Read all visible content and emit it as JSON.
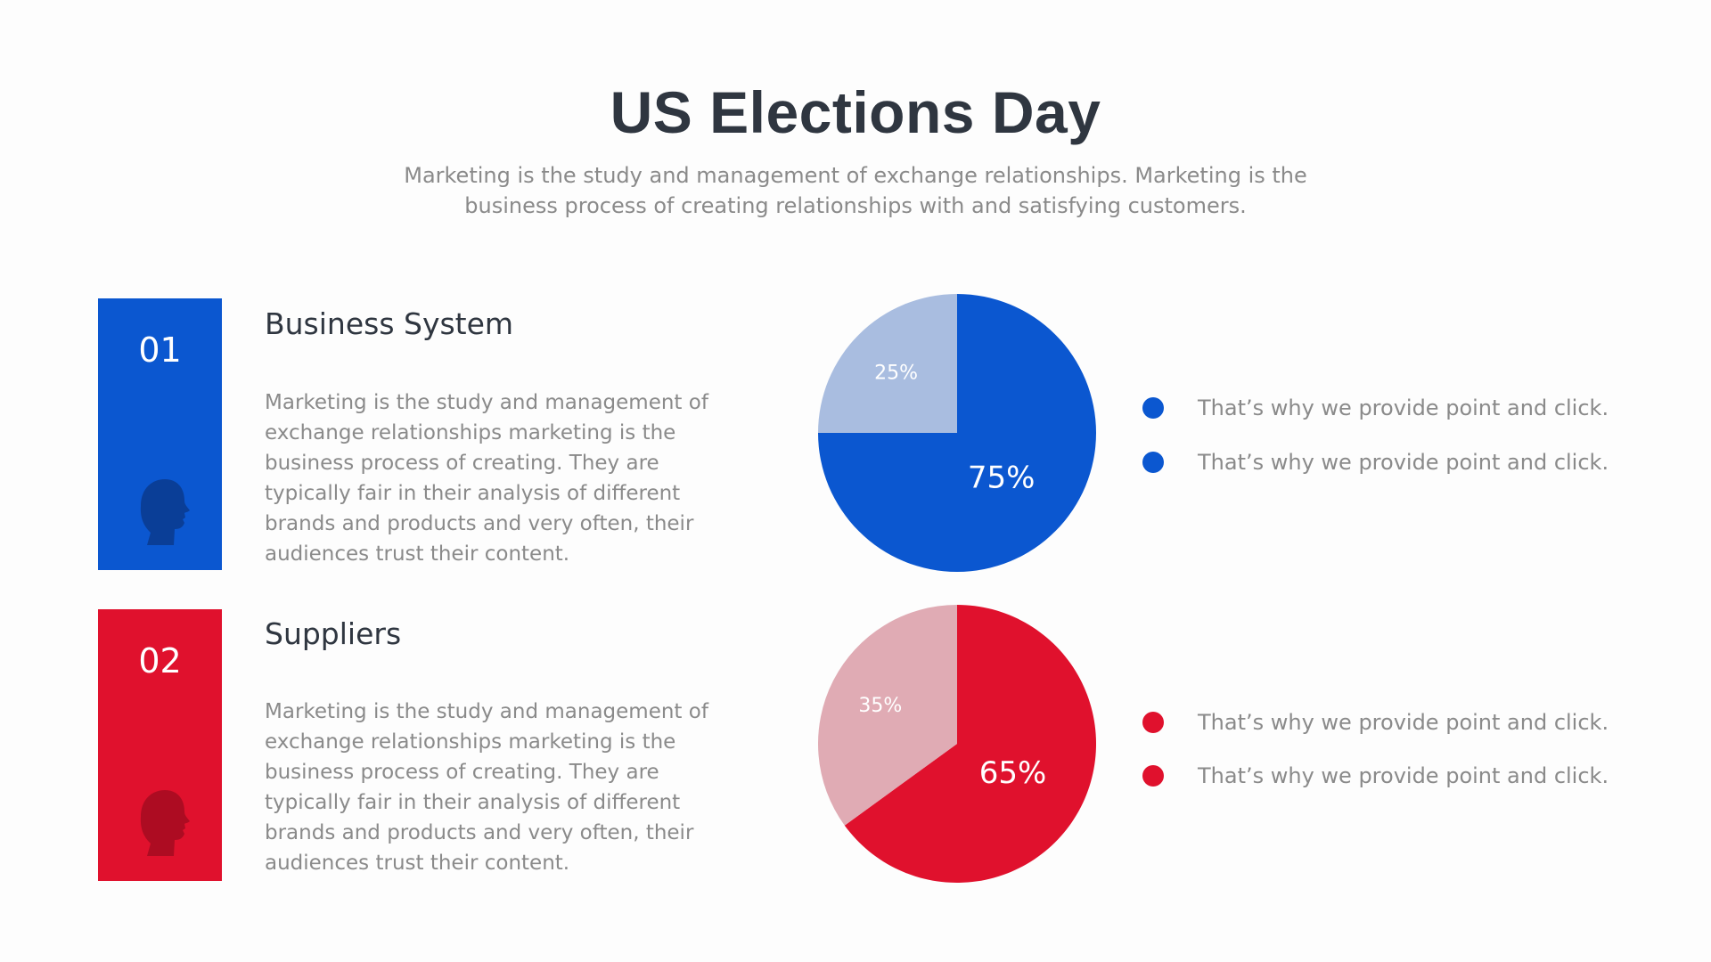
{
  "title": "US Elections Day",
  "subtitle": "Marketing is the study and management of exchange relationships. Marketing is the business process of creating relationships with and satisfying customers.",
  "colors": {
    "blue": "#0b57d0",
    "blue_light": "#a9bde0",
    "blue_dark": "#0a3e97",
    "red": "#e0112d",
    "red_light": "#e0abb4",
    "red_dark": "#ad0c22",
    "title": "#2f3640",
    "text": "#8a8a8a"
  },
  "sections": [
    {
      "number": "01",
      "title": "Business System",
      "body": "Marketing is the study and management of exchange relationships marketing is the business process of creating. They are typically fair in their analysis of different brands and products and very often, their audiences trust their content.",
      "icon": "person-head-icon"
    },
    {
      "number": "02",
      "title": "Suppliers",
      "body": "Marketing is the study and management of exchange relationships marketing is the business process of creating. They are typically fair in their analysis of different brands and products and very often, their audiences trust their content.",
      "icon": "person-head-icon"
    }
  ],
  "legends": [
    [
      "That’s why we provide point and click.",
      "That’s why we provide point and click."
    ],
    [
      "That’s why we provide point and click.",
      "That’s why we provide point and click."
    ]
  ],
  "chart_data": [
    {
      "type": "pie",
      "slices": [
        {
          "value": 75,
          "label": "75%",
          "color": "#0b57d0"
        },
        {
          "value": 25,
          "label": "25%",
          "color": "#a9bde0"
        }
      ]
    },
    {
      "type": "pie",
      "slices": [
        {
          "value": 65,
          "label": "65%",
          "color": "#e0112d"
        },
        {
          "value": 35,
          "label": "35%",
          "color": "#e0abb4"
        }
      ]
    }
  ]
}
